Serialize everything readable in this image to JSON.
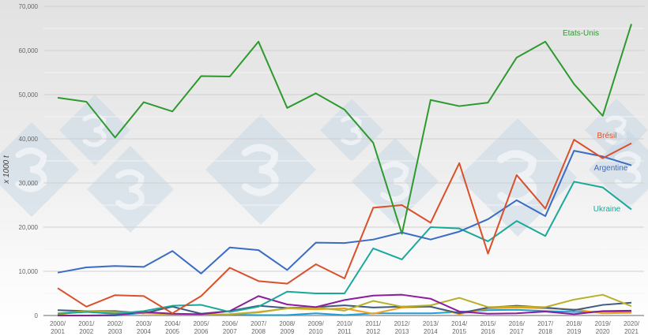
{
  "chart_data": {
    "type": "line",
    "ylabel": "x 1000 t",
    "ylim": [
      0,
      70000
    ],
    "yticks": [
      "0",
      "10,000",
      "20,000",
      "30,000",
      "40,000",
      "50,000",
      "60,000",
      "70,000"
    ],
    "ytick_values": [
      0,
      10000,
      20000,
      30000,
      40000,
      50000,
      60000,
      70000
    ],
    "grid": true,
    "categories": [
      "2000/\n2001",
      "2001/\n2002",
      "2002/\n2003",
      "2003/\n2004",
      "2004/\n2005",
      "2005/\n2006",
      "2006/\n2007",
      "2007/\n2008",
      "2008/\n2009",
      "2009/\n2010",
      "2010/\n2011",
      "2011/\n2012",
      "2012/\n2013",
      "2013/\n2014",
      "2014/\n2015",
      "2015/\n2016",
      "2016/\n2017",
      "2017/\n2018",
      "2018/\n2019",
      "2019/\n2020",
      "2020/\n2021"
    ],
    "series": [
      {
        "name": "Etats-Unis",
        "color": "#2e9a2e",
        "labeled": true,
        "values": [
          49300,
          48400,
          40300,
          48300,
          46200,
          54200,
          54100,
          62000,
          47000,
          50300,
          46600,
          39100,
          18500,
          48800,
          47400,
          48200,
          58400,
          62000,
          52400,
          45200,
          66000
        ]
      },
      {
        "name": "Brésil",
        "color": "#d9502a",
        "labeled": true,
        "values": [
          6200,
          2000,
          4600,
          4400,
          500,
          4400,
          10800,
          7800,
          7200,
          11600,
          8400,
          24400,
          25000,
          21000,
          34500,
          14000,
          31800,
          24200,
          39800,
          35600,
          39000
        ]
      },
      {
        "name": "Argentine",
        "color": "#3a6cc4",
        "labeled": true,
        "values": [
          9700,
          10900,
          11200,
          11000,
          14600,
          9500,
          15400,
          14800,
          10300,
          16500,
          16400,
          17200,
          18800,
          17200,
          19000,
          21800,
          26100,
          22500,
          37300,
          36000,
          34000
        ]
      },
      {
        "name": "Ukraine",
        "color": "#1aa89a",
        "labeled": true,
        "values": [
          400,
          800,
          400,
          1000,
          2200,
          2400,
          800,
          2000,
          5400,
          5000,
          5000,
          15200,
          12700,
          20000,
          19700,
          16800,
          21400,
          18000,
          30300,
          29000,
          24000
        ]
      },
      {
        "color": "#8b1d9c",
        "values": [
          0,
          0,
          100,
          800,
          400,
          300,
          1000,
          4400,
          2500,
          1900,
          3500,
          4500,
          4700,
          3800,
          900,
          400,
          500,
          900,
          300,
          1000,
          1100
        ]
      },
      {
        "color": "#b8b02a",
        "values": [
          500,
          1000,
          800,
          600,
          300,
          200,
          300,
          700,
          1600,
          1800,
          1100,
          3300,
          2000,
          2300,
          4000,
          1900,
          2000,
          1900,
          3600,
          4700,
          2100
        ]
      },
      {
        "color": "#3d5a80",
        "values": [
          1200,
          1000,
          1000,
          500,
          2000,
          400,
          1000,
          2200,
          1700,
          1900,
          2300,
          1800,
          2000,
          2000,
          500,
          1800,
          2200,
          1800,
          1200,
          2400,
          2900
        ]
      },
      {
        "color": "#f0a020",
        "values": [
          200,
          1000,
          600,
          500,
          300,
          200,
          300,
          800,
          1600,
          1400,
          1600,
          400,
          1800,
          2000,
          300,
          1600,
          1800,
          1600,
          1400,
          500,
          600
        ]
      },
      {
        "color": "#1e9ed8",
        "values": [
          0,
          0,
          0,
          600,
          300,
          200,
          200,
          100,
          100,
          500,
          100,
          500,
          500,
          500,
          800,
          1200,
          1300,
          1000,
          800,
          900,
          900
        ]
      }
    ]
  }
}
